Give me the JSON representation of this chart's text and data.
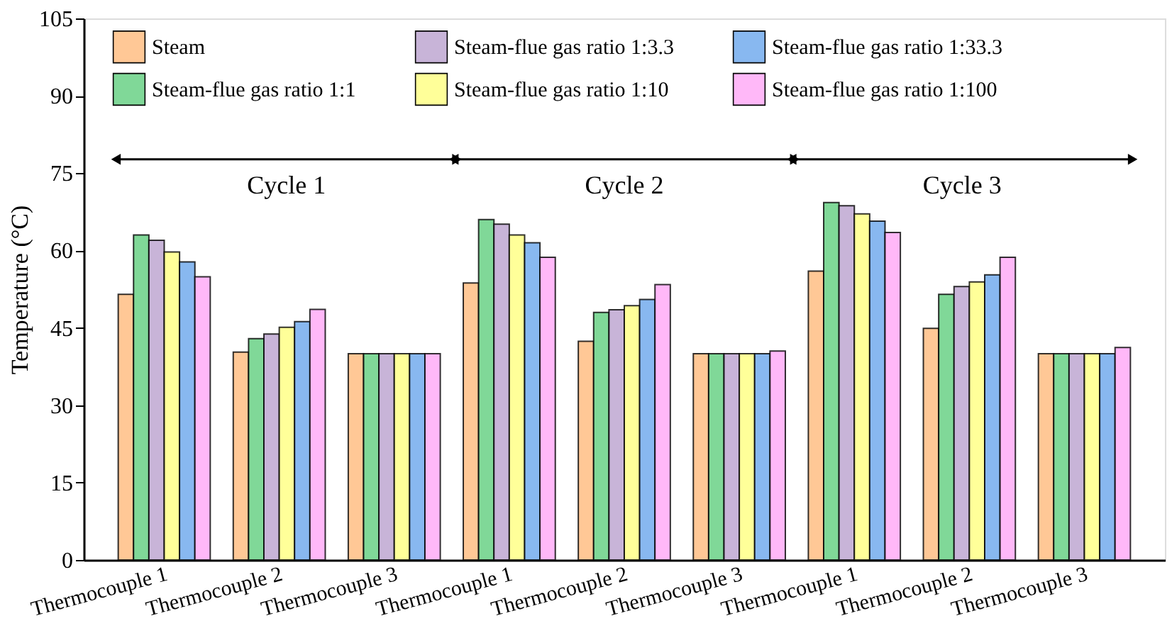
{
  "chart_data": {
    "type": "bar",
    "ylabel": "Temperature (°C)",
    "categories": [
      "Thermocouple 1",
      "Thermocouple 2",
      "Thermocouple 3",
      "Thermocouple 1",
      "Thermocouple 2",
      "Thermocouple 3",
      "Thermocouple 1",
      "Thermocouple 2",
      "Thermocouple 3"
    ],
    "series": [
      {
        "name": "Steam",
        "color": "#ffc896",
        "values": [
          51.5,
          40.3,
          40,
          53.7,
          42.4,
          40,
          56.0,
          44.9,
          40
        ]
      },
      {
        "name": "Steam-flue gas ratio 1:1",
        "color": "#80d898",
        "values": [
          63.0,
          42.9,
          40,
          66.0,
          48.0,
          40,
          69.3,
          51.5,
          40
        ]
      },
      {
        "name": "Steam-flue gas ratio 1:3.3",
        "color": "#c8b4d8",
        "values": [
          62.0,
          43.8,
          40,
          65.1,
          48.5,
          40,
          68.7,
          53.0,
          40
        ]
      },
      {
        "name": "Steam-flue gas ratio 1:10",
        "color": "#ffff99",
        "values": [
          59.7,
          45.1,
          40,
          63.0,
          49.3,
          40,
          67.1,
          53.9,
          40
        ]
      },
      {
        "name": "Steam-flue gas ratio 1:33.3",
        "color": "#88b8f0",
        "values": [
          57.8,
          46.2,
          40,
          61.5,
          50.5,
          40,
          65.7,
          55.3,
          40
        ]
      },
      {
        "name": "Steam-flue gas ratio 1:100",
        "color": "#ffb8f8",
        "values": [
          54.9,
          48.6,
          40,
          58.7,
          53.4,
          40.5,
          63.5,
          58.7,
          41.2
        ]
      }
    ],
    "annotations": [
      "Cycle 1",
      "Cycle 2",
      "Cycle 3"
    ],
    "ylim": [
      0,
      105
    ],
    "yticks": [
      0,
      15,
      30,
      45,
      60,
      75,
      90,
      105
    ],
    "grid": false,
    "legend": "top left"
  }
}
